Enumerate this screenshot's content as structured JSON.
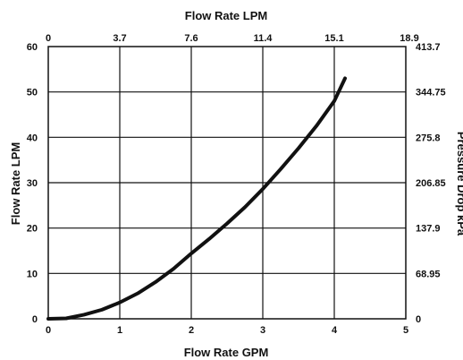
{
  "chart_data": {
    "type": "line",
    "title": "",
    "xlabel": "Flow Rate GPM",
    "ylabel": "Flow Rate LPM",
    "x2label": "Flow Rate LPM",
    "y2label": "Pressure Drop kPa",
    "xlim": [
      0,
      5
    ],
    "ylim": [
      0,
      60
    ],
    "grid": true,
    "x_ticks": [
      "0",
      "1",
      "2",
      "3",
      "4",
      "5"
    ],
    "y_ticks": [
      "0",
      "10",
      "20",
      "30",
      "40",
      "50",
      "60"
    ],
    "x2_ticks": [
      "0",
      "3.7",
      "7.6",
      "11.4",
      "15.1",
      "18.9"
    ],
    "y2_ticks": [
      "0",
      "68.95",
      "137.9",
      "206.85",
      "275.8",
      "344.75",
      "413.7"
    ],
    "series": [
      {
        "x": [
          0,
          0.25,
          0.5,
          0.75,
          1,
          1.25,
          1.5,
          1.75,
          2,
          2.25,
          2.5,
          2.75,
          3,
          3.25,
          3.5,
          3.75,
          4,
          4.15
        ],
        "y": [
          0,
          0.1,
          0.9,
          2,
          3.6,
          5.6,
          8.1,
          11,
          14.4,
          17.6,
          21,
          24.6,
          28.6,
          33,
          37.6,
          42.5,
          48,
          53
        ]
      }
    ]
  }
}
